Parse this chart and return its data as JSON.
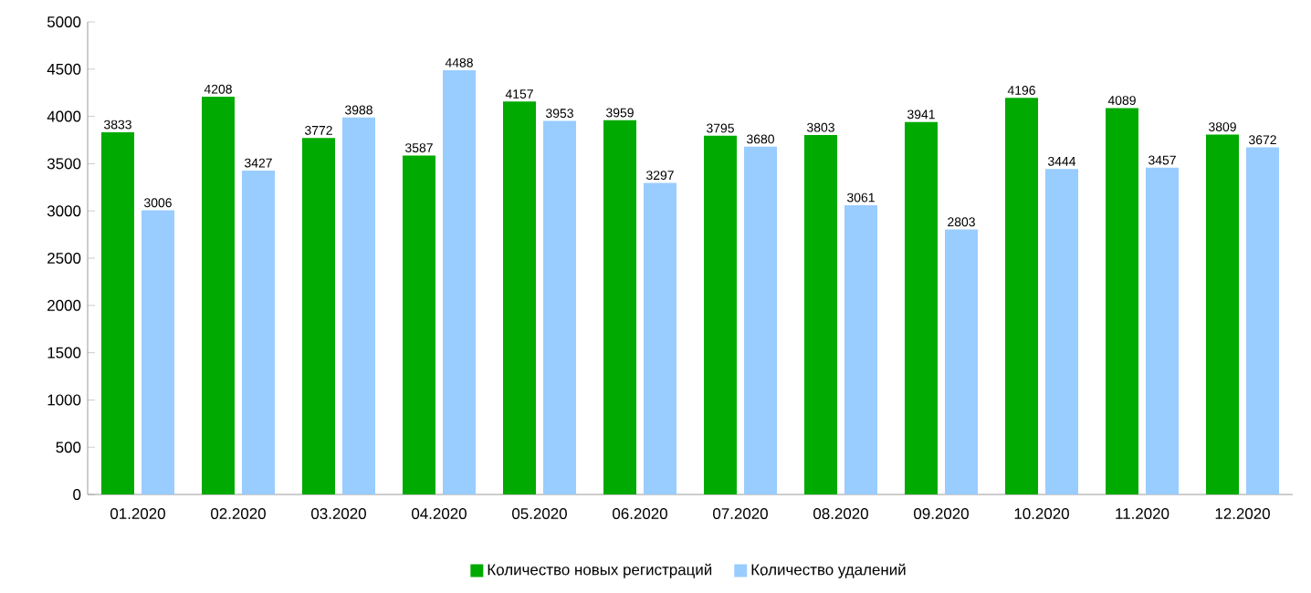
{
  "chart_data": {
    "type": "bar",
    "categories": [
      "01.2020",
      "02.2020",
      "03.2020",
      "04.2020",
      "05.2020",
      "06.2020",
      "07.2020",
      "08.2020",
      "09.2020",
      "10.2020",
      "11.2020",
      "12.2020"
    ],
    "series": [
      {
        "name": "Количество новых регистраций",
        "color": "#00aa00",
        "values": [
          3833,
          4208,
          3772,
          3587,
          4157,
          3959,
          3795,
          3803,
          3941,
          4196,
          4089,
          3809
        ]
      },
      {
        "name": "Количество удалений",
        "color": "#99ccff",
        "values": [
          3006,
          3427,
          3988,
          4488,
          3953,
          3297,
          3680,
          3061,
          2803,
          3444,
          3457,
          3672
        ]
      }
    ],
    "ylim": [
      0,
      5000
    ],
    "yticks": [
      0,
      500,
      1000,
      1500,
      2000,
      2500,
      3000,
      3500,
      4000,
      4500,
      5000
    ],
    "data_labels": true,
    "legend": "bottom",
    "grid": false
  }
}
